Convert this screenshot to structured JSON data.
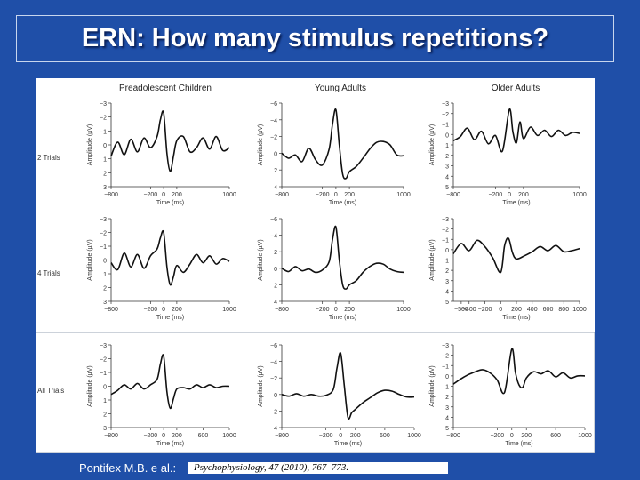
{
  "slide": {
    "title": "ERN: How many stimulus repetitions?",
    "citation": "Pontifex M.B. e al.:",
    "reference": "Psychophysiology, 47 (2010), 767–773."
  },
  "figure": {
    "column_headers": [
      "Preadolescent Children",
      "Young Adults",
      "Older Adults"
    ],
    "row_labels": [
      "2 Trials",
      "4 Trials",
      "All Trials"
    ],
    "xlabel": "Time (ms)",
    "ylabel": "Amplitude (µV)"
  },
  "chart_data": [
    {
      "type": "line",
      "panel": "Preadolescent Children - 2 Trials",
      "xlabel": "Time (ms)",
      "ylabel": "Amplitude (µV)",
      "xlim": [
        -800,
        1000
      ],
      "ylim": [
        -3,
        3
      ],
      "inverted_y": true,
      "xticks": [
        "−800",
        "−200",
        "0",
        "200",
        "1000"
      ],
      "yticks": [
        "−3",
        "−2",
        "−1",
        "0",
        "1",
        "2",
        "3"
      ],
      "x": [
        -800,
        -700,
        -600,
        -500,
        -400,
        -300,
        -200,
        -100,
        -50,
        0,
        50,
        100,
        150,
        200,
        300,
        400,
        500,
        600,
        700,
        800,
        900,
        1000
      ],
      "y": [
        0.8,
        -0.2,
        0.7,
        -0.4,
        0.5,
        -0.5,
        0.2,
        -0.6,
        -1.8,
        -2.3,
        0.6,
        1.9,
        0.8,
        -0.3,
        -0.6,
        0.5,
        0.2,
        -0.5,
        0.3,
        -0.6,
        0.4,
        0.2
      ]
    },
    {
      "type": "line",
      "panel": "Young Adults - 2 Trials",
      "xlabel": "Time (ms)",
      "ylabel": "Amplitude (µV)",
      "xlim": [
        -800,
        1000
      ],
      "ylim": [
        -6,
        4
      ],
      "inverted_y": true,
      "xticks": [
        "−800",
        "−200",
        "0",
        "200",
        "1000"
      ],
      "yticks": [
        "−6",
        "−4",
        "−2",
        "0",
        "2",
        "4"
      ],
      "x": [
        -800,
        -700,
        -600,
        -500,
        -400,
        -300,
        -200,
        -100,
        -50,
        0,
        50,
        100,
        150,
        200,
        300,
        400,
        500,
        600,
        700,
        800,
        900,
        1000
      ],
      "y": [
        0,
        0.6,
        0.2,
        1.0,
        -0.6,
        0.8,
        1.4,
        -0.5,
        -3.5,
        -5.2,
        -1.0,
        2.5,
        3.0,
        2.2,
        1.6,
        0.6,
        -0.5,
        -1.3,
        -1.4,
        -1.0,
        0.2,
        0.3
      ]
    },
    {
      "type": "line",
      "panel": "Older Adults - 2 Trials",
      "xlabel": "Time (ms)",
      "ylabel": "Amplitude (µV)",
      "xlim": [
        -800,
        1000
      ],
      "ylim": [
        -3,
        5
      ],
      "inverted_y": true,
      "xticks": [
        "−800",
        "−200",
        "0",
        "200",
        "1000"
      ],
      "yticks": [
        "−3",
        "−2",
        "−1",
        "0",
        "1",
        "2",
        "3",
        "4",
        "5"
      ],
      "x": [
        -800,
        -700,
        -600,
        -500,
        -400,
        -300,
        -200,
        -100,
        0,
        50,
        100,
        150,
        200,
        300,
        400,
        500,
        600,
        700,
        800,
        900,
        1000
      ],
      "y": [
        0.6,
        0.2,
        -0.6,
        0.5,
        -0.3,
        0.9,
        0.1,
        1.6,
        -2.4,
        -0.2,
        0.8,
        -1.2,
        0.4,
        -0.7,
        0.1,
        -0.4,
        0.2,
        -0.4,
        0.1,
        -0.2,
        -0.1
      ]
    },
    {
      "type": "line",
      "panel": "Preadolescent Children - 4 Trials",
      "xlabel": "Time (ms)",
      "ylabel": "Amplitude (µV)",
      "xlim": [
        -800,
        1000
      ],
      "ylim": [
        -3,
        3
      ],
      "inverted_y": true,
      "xticks": [
        "−800",
        "−200",
        "0",
        "200",
        "1000"
      ],
      "yticks": [
        "−3",
        "−2",
        "−1",
        "0",
        "1",
        "2",
        "3"
      ],
      "x": [
        -800,
        -700,
        -600,
        -500,
        -400,
        -300,
        -200,
        -100,
        -50,
        0,
        50,
        100,
        150,
        200,
        300,
        400,
        500,
        600,
        700,
        800,
        900,
        1000
      ],
      "y": [
        0.2,
        0.7,
        -0.5,
        0.5,
        -0.4,
        0.6,
        -0.3,
        -0.8,
        -1.6,
        -2.0,
        0.5,
        1.8,
        1.2,
        0.4,
        0.9,
        0.3,
        -0.4,
        0.2,
        -0.3,
        0.3,
        -0.1,
        0.1
      ]
    },
    {
      "type": "line",
      "panel": "Young Adults - 4 Trials",
      "xlabel": "Time (ms)",
      "ylabel": "Amplitude (µV)",
      "xlim": [
        -800,
        1000
      ],
      "ylim": [
        -6,
        4
      ],
      "inverted_y": true,
      "xticks": [
        "−800",
        "−200",
        "0",
        "200",
        "1000"
      ],
      "yticks": [
        "−6",
        "−4",
        "−2",
        "0",
        "2",
        "4"
      ],
      "x": [
        -800,
        -700,
        -600,
        -500,
        -400,
        -300,
        -200,
        -100,
        -50,
        0,
        50,
        100,
        150,
        200,
        300,
        400,
        500,
        600,
        700,
        800,
        900,
        1000
      ],
      "y": [
        0,
        0.4,
        -0.2,
        0.3,
        0.1,
        0.5,
        0.2,
        -0.8,
        -3.5,
        -5.0,
        -1.0,
        2.0,
        2.5,
        2.0,
        1.5,
        0.5,
        -0.2,
        -0.6,
        -0.5,
        0.1,
        0.4,
        0.5
      ]
    },
    {
      "type": "line",
      "panel": "Older Adults - 4 Trials",
      "xlabel": "Time (ms)",
      "ylabel": "Amplitude (µV)",
      "xlim": [
        -600,
        1000
      ],
      "ylim": [
        -3,
        5
      ],
      "inverted_y": true,
      "xticks": [
        "−500",
        "−400",
        "−200",
        "0",
        "200",
        "400",
        "600",
        "800",
        "1000"
      ],
      "yticks": [
        "−3",
        "−2",
        "−1",
        "0",
        "1",
        "2",
        "3",
        "4",
        "5"
      ],
      "x": [
        -600,
        -500,
        -400,
        -300,
        -200,
        -100,
        0,
        50,
        100,
        150,
        200,
        300,
        400,
        500,
        600,
        700,
        800,
        900,
        1000
      ],
      "y": [
        0.4,
        -0.6,
        0.1,
        -0.9,
        -0.3,
        0.8,
        2.2,
        -0.4,
        -1.1,
        0.3,
        0.9,
        0.6,
        0.2,
        -0.3,
        0.1,
        -0.4,
        0.2,
        0.1,
        -0.1
      ]
    },
    {
      "type": "line",
      "panel": "Preadolescent Children - All Trials",
      "xlabel": "Time (ms)",
      "ylabel": "Amplitude (µV)",
      "xlim": [
        -800,
        1000
      ],
      "ylim": [
        -3,
        3
      ],
      "inverted_y": true,
      "xticks": [
        "−800",
        "−200",
        "0",
        "200",
        "600",
        "1000"
      ],
      "yticks": [
        "−3",
        "−2",
        "−1",
        "0",
        "1",
        "2",
        "3"
      ],
      "x": [
        -800,
        -700,
        -600,
        -500,
        -400,
        -300,
        -200,
        -100,
        -50,
        0,
        50,
        100,
        150,
        200,
        300,
        400,
        500,
        600,
        700,
        800,
        900,
        1000
      ],
      "y": [
        0.6,
        0.3,
        -0.1,
        0.2,
        -0.2,
        0.2,
        -0.1,
        -0.5,
        -1.6,
        -2.2,
        0.4,
        1.6,
        0.9,
        0.2,
        0.1,
        0.2,
        -0.1,
        0.1,
        -0.1,
        0.1,
        0,
        0
      ]
    },
    {
      "type": "line",
      "panel": "Young Adults - All Trials",
      "xlabel": "Time (ms)",
      "ylabel": "Amplitude (µV)",
      "xlim": [
        -800,
        1000
      ],
      "ylim": [
        -6,
        4
      ],
      "inverted_y": true,
      "xticks": [
        "−800",
        "−200",
        "0",
        "200",
        "600",
        "1000"
      ],
      "yticks": [
        "−6",
        "−4",
        "−2",
        "0",
        "2",
        "4"
      ],
      "x": [
        -800,
        -700,
        -600,
        -500,
        -400,
        -300,
        -200,
        -100,
        -50,
        0,
        50,
        100,
        150,
        200,
        300,
        400,
        500,
        600,
        700,
        800,
        900,
        1000
      ],
      "y": [
        0,
        0.2,
        -0.1,
        0.2,
        0,
        0.2,
        0.1,
        -0.6,
        -3.2,
        -5.0,
        -1.0,
        2.8,
        2.2,
        1.8,
        1.0,
        0.4,
        -0.2,
        -0.5,
        -0.4,
        0,
        0.3,
        0.3
      ]
    },
    {
      "type": "line",
      "panel": "Older Adults - All Trials",
      "xlabel": "Time (ms)",
      "ylabel": "Amplitude (µV)",
      "xlim": [
        -800,
        1000
      ],
      "ylim": [
        -3,
        5
      ],
      "inverted_y": true,
      "xticks": [
        "−800",
        "−200",
        "0",
        "200",
        "600",
        "1000"
      ],
      "yticks": [
        "−3",
        "−2",
        "−1",
        "0",
        "1",
        "2",
        "3",
        "4",
        "5"
      ],
      "x": [
        -800,
        -700,
        -600,
        -500,
        -400,
        -300,
        -200,
        -100,
        0,
        50,
        100,
        150,
        200,
        300,
        400,
        500,
        600,
        700,
        800,
        900,
        1000
      ],
      "y": [
        0.8,
        0.3,
        -0.1,
        -0.4,
        -0.6,
        -0.3,
        0.4,
        1.6,
        -2.6,
        -0.3,
        0.9,
        1.1,
        0.2,
        -0.4,
        -0.2,
        -0.5,
        0.1,
        -0.3,
        0.2,
        0,
        0
      ]
    }
  ]
}
